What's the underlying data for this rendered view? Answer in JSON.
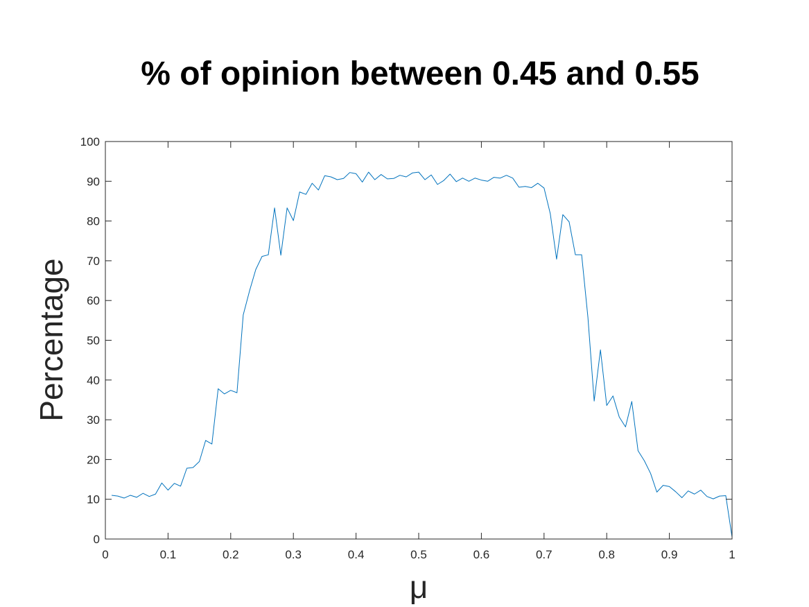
{
  "chart_data": {
    "type": "line",
    "title": "% of opinion between 0.45 and 0.55",
    "xlabel": "μ",
    "ylabel": "Percentage",
    "xlim": [
      0,
      1
    ],
    "ylim": [
      0,
      100
    ],
    "xticks": [
      0,
      0.1,
      0.2,
      0.3,
      0.4,
      0.5,
      0.6,
      0.7,
      0.8,
      0.9,
      1
    ],
    "xtick_labels": [
      "0",
      "0.1",
      "0.2",
      "0.3",
      "0.4",
      "0.5",
      "0.6",
      "0.7",
      "0.8",
      "0.9",
      "1"
    ],
    "yticks": [
      0,
      10,
      20,
      30,
      40,
      50,
      60,
      70,
      80,
      90,
      100
    ],
    "ytick_labels": [
      "0",
      "10",
      "20",
      "30",
      "40",
      "50",
      "60",
      "70",
      "80",
      "90",
      "100"
    ],
    "grid": false,
    "line_color": "#0072BD",
    "series": [
      {
        "x": [
          0.01,
          0.02,
          0.03,
          0.04,
          0.05,
          0.06,
          0.07,
          0.08,
          0.09,
          0.1,
          0.11,
          0.12,
          0.13,
          0.14,
          0.15,
          0.16,
          0.17,
          0.18,
          0.19,
          0.2,
          0.21,
          0.22,
          0.23,
          0.24,
          0.25,
          0.26,
          0.27,
          0.28,
          0.29,
          0.3,
          0.31,
          0.32,
          0.33,
          0.34,
          0.35,
          0.36,
          0.37,
          0.38,
          0.39,
          0.4,
          0.41,
          0.42,
          0.43,
          0.44,
          0.45,
          0.46,
          0.47,
          0.48,
          0.49,
          0.5,
          0.51,
          0.52,
          0.53,
          0.54,
          0.55,
          0.56,
          0.57,
          0.58,
          0.59,
          0.6,
          0.61,
          0.62,
          0.63,
          0.64,
          0.65,
          0.66,
          0.67,
          0.68,
          0.69,
          0.7,
          0.71,
          0.72,
          0.73,
          0.74,
          0.75,
          0.76,
          0.77,
          0.78,
          0.79,
          0.8,
          0.81,
          0.82,
          0.83,
          0.84,
          0.85,
          0.86,
          0.87,
          0.88,
          0.89,
          0.9,
          0.91,
          0.92,
          0.93,
          0.94,
          0.95,
          0.96,
          0.97,
          0.98,
          0.99,
          1.0
        ],
        "y": [
          11.0,
          10.8,
          10.3,
          11.0,
          10.5,
          11.5,
          10.7,
          11.3,
          14.1,
          12.3,
          14.0,
          13.3,
          17.8,
          18.0,
          19.5,
          24.8,
          23.9,
          37.8,
          36.5,
          37.4,
          36.8,
          56.4,
          62.4,
          67.8,
          71.1,
          71.5,
          83.3,
          71.4,
          83.3,
          80.1,
          87.3,
          86.7,
          89.5,
          87.8,
          91.4,
          91.1,
          90.4,
          90.7,
          92.2,
          91.9,
          89.8,
          92.3,
          90.4,
          91.7,
          90.6,
          90.7,
          91.5,
          91.1,
          92.1,
          92.3,
          90.4,
          91.6,
          89.2,
          90.2,
          91.8,
          89.9,
          90.8,
          90.0,
          90.8,
          90.3,
          90.0,
          91.0,
          90.8,
          91.5,
          90.8,
          88.5,
          88.7,
          88.4,
          89.5,
          88.3,
          81.8,
          70.4,
          81.6,
          79.8,
          71.5,
          71.5,
          55.8,
          34.7,
          47.6,
          33.6,
          36.0,
          30.7,
          28.2,
          34.6,
          22.2,
          19.7,
          16.5,
          11.8,
          13.5,
          13.2,
          11.9,
          10.4,
          12.1,
          11.3,
          12.3,
          10.7,
          10.1,
          10.8,
          10.9,
          0.5
        ]
      }
    ]
  }
}
